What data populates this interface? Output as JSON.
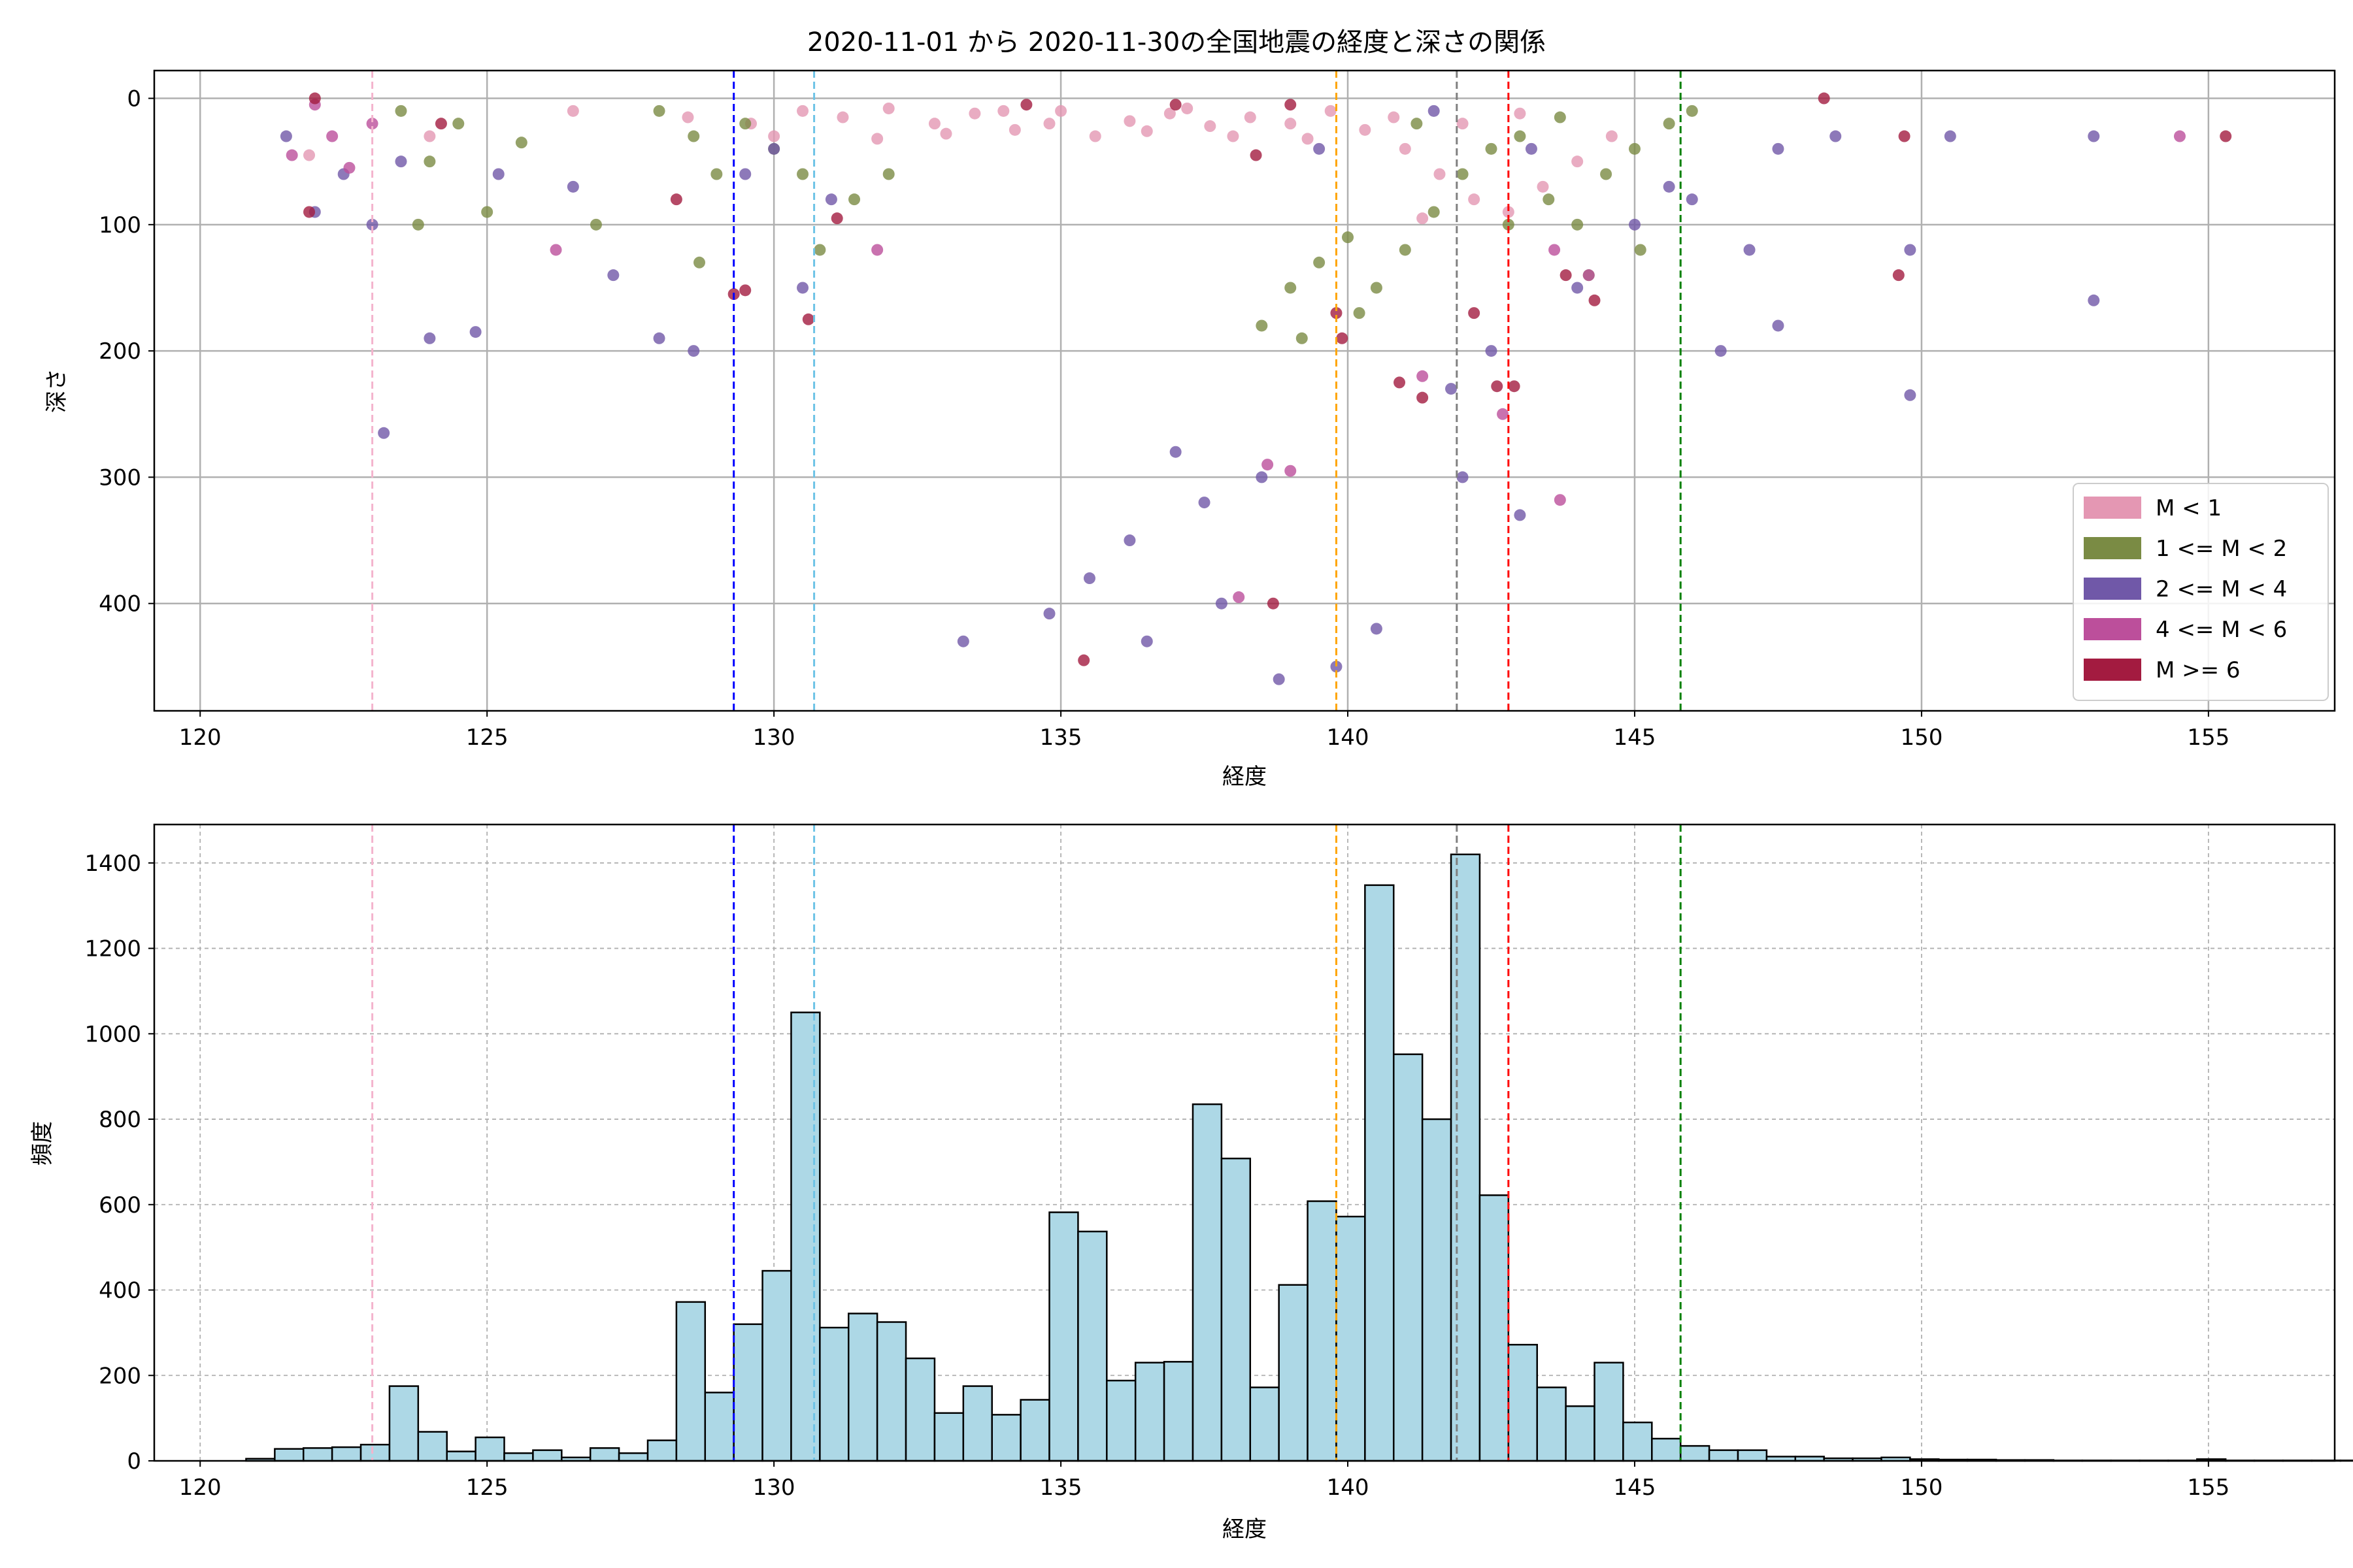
{
  "chart_data": [
    {
      "type": "scatter",
      "title": "2020-11-01 から 2020-11-30の全国地震の経度と深さの関係",
      "xlabel": "経度",
      "ylabel": "深さ",
      "xlim": [
        119.2,
        157.2
      ],
      "ylim": [
        485,
        -22
      ],
      "y_inverted": true,
      "xticks": [
        "120",
        "125",
        "130",
        "135",
        "140",
        "145",
        "150",
        "155"
      ],
      "yticks": [
        "0",
        "100",
        "200",
        "300",
        "400"
      ],
      "grid": true,
      "legend_position": "lower-right",
      "series": [
        {
          "name": "M < 1",
          "color": "#e497b3",
          "points": [
            [
              130.5,
              10
            ],
            [
              131.2,
              15
            ],
            [
              132,
              8
            ],
            [
              132.8,
              20
            ],
            [
              133.5,
              12
            ],
            [
              134.2,
              25
            ],
            [
              135,
              10
            ],
            [
              135.6,
              30
            ],
            [
              136.2,
              18
            ],
            [
              136.9,
              12
            ],
            [
              137.6,
              22
            ],
            [
              138.3,
              15
            ],
            [
              139,
              20
            ],
            [
              139.7,
              10
            ],
            [
              140.3,
              25
            ],
            [
              141,
              40
            ],
            [
              141.6,
              60
            ],
            [
              142.2,
              80
            ],
            [
              142.8,
              90
            ],
            [
              143.4,
              70
            ],
            [
              144,
              50
            ],
            [
              144.6,
              30
            ],
            [
              130,
              30
            ],
            [
              129.6,
              20
            ],
            [
              133,
              28
            ],
            [
              134.8,
              20
            ],
            [
              136.5,
              26
            ],
            [
              138,
              30
            ],
            [
              139.3,
              32
            ],
            [
              140.8,
              15
            ],
            [
              142,
              20
            ],
            [
              143,
              12
            ],
            [
              121.9,
              45
            ],
            [
              124,
              30
            ],
            [
              126.5,
              10
            ],
            [
              128.5,
              15
            ],
            [
              137.2,
              8
            ],
            [
              134,
              10
            ],
            [
              131.8,
              32
            ],
            [
              141.3,
              95
            ]
          ]
        },
        {
          "name": "1 <= M < 2",
          "color": "#7a8b44",
          "points": [
            [
              123.5,
              10
            ],
            [
              124,
              50
            ],
            [
              124.5,
              20
            ],
            [
              125,
              90
            ],
            [
              128,
              10
            ],
            [
              128.6,
              30
            ],
            [
              129,
              60
            ],
            [
              129.5,
              20
            ],
            [
              130,
              40
            ],
            [
              130.5,
              60
            ],
            [
              130.8,
              120
            ],
            [
              131.4,
              80
            ],
            [
              132,
              60
            ],
            [
              139,
              150
            ],
            [
              139.5,
              130
            ],
            [
              140,
              110
            ],
            [
              140.5,
              150
            ],
            [
              141,
              120
            ],
            [
              141.5,
              90
            ],
            [
              142,
              60
            ],
            [
              142.5,
              40
            ],
            [
              143,
              30
            ],
            [
              143.5,
              80
            ],
            [
              144,
              100
            ],
            [
              144.5,
              60
            ],
            [
              145,
              40
            ],
            [
              145.6,
              20
            ],
            [
              146,
              10
            ],
            [
              138.5,
              180
            ],
            [
              139.2,
              190
            ],
            [
              140.2,
              170
            ],
            [
              142.8,
              100
            ],
            [
              144.2,
              140
            ],
            [
              128.7,
              130
            ],
            [
              126.9,
              100
            ],
            [
              123.8,
              100
            ],
            [
              125.6,
              35
            ],
            [
              141.2,
              20
            ],
            [
              143.7,
              15
            ],
            [
              145.1,
              120
            ]
          ]
        },
        {
          "name": "2 <= M < 4",
          "color": "#7058a8",
          "points": [
            [
              121.5,
              30
            ],
            [
              122,
              90
            ],
            [
              122.5,
              60
            ],
            [
              123,
              100
            ],
            [
              123.5,
              50
            ],
            [
              124,
              190
            ],
            [
              124.8,
              185
            ],
            [
              125.2,
              60
            ],
            [
              126.5,
              70
            ],
            [
              127.2,
              140
            ],
            [
              128,
              190
            ],
            [
              128.6,
              200
            ],
            [
              129.5,
              60
            ],
            [
              130,
              40
            ],
            [
              130.5,
              150
            ],
            [
              131,
              80
            ],
            [
              137,
              280
            ],
            [
              137.5,
              320
            ],
            [
              136.2,
              350
            ],
            [
              135.5,
              380
            ],
            [
              136.5,
              430
            ],
            [
              137.8,
              400
            ],
            [
              139.8,
              450
            ],
            [
              138.5,
              300
            ],
            [
              140.5,
              420
            ],
            [
              133.3,
              430
            ],
            [
              143,
              330
            ],
            [
              142,
              300
            ],
            [
              141.8,
              230
            ],
            [
              142.5,
              200
            ],
            [
              144,
              150
            ],
            [
              145,
              100
            ],
            [
              146,
              80
            ],
            [
              147,
              120
            ],
            [
              147.5,
              180
            ],
            [
              148.5,
              30
            ],
            [
              149.8,
              120
            ],
            [
              150.5,
              30
            ],
            [
              153,
              160
            ],
            [
              153,
              30
            ],
            [
              149.8,
              235
            ],
            [
              123.2,
              265
            ],
            [
              134.8,
              408
            ],
            [
              138.8,
              460
            ],
            [
              141.5,
              10
            ],
            [
              143.2,
              40
            ],
            [
              139.5,
              40
            ],
            [
              147.5,
              40
            ],
            [
              145.6,
              70
            ],
            [
              146.5,
              200
            ]
          ]
        },
        {
          "name": "4 <= M < 6",
          "color": "#bc4f9b",
          "points": [
            [
              121.6,
              45
            ],
            [
              122,
              5
            ],
            [
              122.3,
              30
            ],
            [
              123,
              20
            ],
            [
              126.2,
              120
            ],
            [
              131.8,
              120
            ],
            [
              138.1,
              395
            ],
            [
              138.6,
              290
            ],
            [
              139,
              295
            ],
            [
              141.3,
              220
            ],
            [
              143.7,
              318
            ],
            [
              143.6,
              120
            ],
            [
              154.5,
              30
            ],
            [
              144.2,
              140
            ],
            [
              142.7,
              250
            ],
            [
              122.6,
              55
            ]
          ]
        },
        {
          "name": "M >= 6",
          "color": "#a31b40",
          "points": [
            [
              122,
              0
            ],
            [
              121.9,
              90
            ],
            [
              124.2,
              20
            ],
            [
              128.3,
              80
            ],
            [
              129.3,
              155
            ],
            [
              129.5,
              152
            ],
            [
              130.6,
              175
            ],
            [
              131.1,
              95
            ],
            [
              134.4,
              5
            ],
            [
              135.4,
              445
            ],
            [
              138.4,
              45
            ],
            [
              138.7,
              400
            ],
            [
              139,
              5
            ],
            [
              139.9,
              190
            ],
            [
              139.8,
              170
            ],
            [
              140.9,
              225
            ],
            [
              141.3,
              237
            ],
            [
              142.2,
              170
            ],
            [
              142.6,
              228
            ],
            [
              142.9,
              228
            ],
            [
              143.8,
              140
            ],
            [
              144.3,
              160
            ],
            [
              149.7,
              30
            ],
            [
              149.6,
              140
            ],
            [
              148.3,
              0
            ],
            [
              155.3,
              30
            ],
            [
              137,
              5
            ]
          ]
        }
      ],
      "reference_lines": [
        {
          "x": 123.0,
          "color": "#f4b4cd"
        },
        {
          "x": 129.3,
          "color": "#0000ff"
        },
        {
          "x": 130.7,
          "color": "#6ec3e6"
        },
        {
          "x": 139.8,
          "color": "#ffa500"
        },
        {
          "x": 141.9,
          "color": "#808080"
        },
        {
          "x": 142.8,
          "color": "#ff0000"
        },
        {
          "x": 145.8,
          "color": "#008000"
        }
      ]
    },
    {
      "type": "bar",
      "xlabel": "経度",
      "ylabel": "頻度",
      "xlim": [
        119.2,
        157.2
      ],
      "ylim": [
        0,
        1490
      ],
      "xticks": [
        "120",
        "125",
        "130",
        "135",
        "140",
        "145",
        "150",
        "155"
      ],
      "yticks": [
        "0",
        "200",
        "400",
        "600",
        "800",
        "1000",
        "1200",
        "1400"
      ],
      "grid": true,
      "bar_color": "#add8e6",
      "bin_start": 120.8,
      "bin_width": 0.5,
      "values": [
        5,
        28,
        30,
        32,
        38,
        175,
        68,
        22,
        55,
        18,
        25,
        8,
        30,
        18,
        48,
        372,
        160,
        320,
        445,
        1050,
        312,
        345,
        325,
        240,
        112,
        175,
        108,
        143,
        582,
        537,
        188,
        230,
        232,
        835,
        708,
        172,
        412,
        608,
        572,
        1348,
        952,
        800,
        1420,
        622,
        272,
        172,
        128,
        230,
        90,
        52,
        35,
        25,
        25,
        10,
        10,
        6,
        6,
        8,
        4,
        3,
        3,
        2,
        2,
        1,
        1,
        1,
        1,
        1,
        4,
        1,
        1,
        1,
        1,
        1,
        1,
        1
      ]
    }
  ]
}
